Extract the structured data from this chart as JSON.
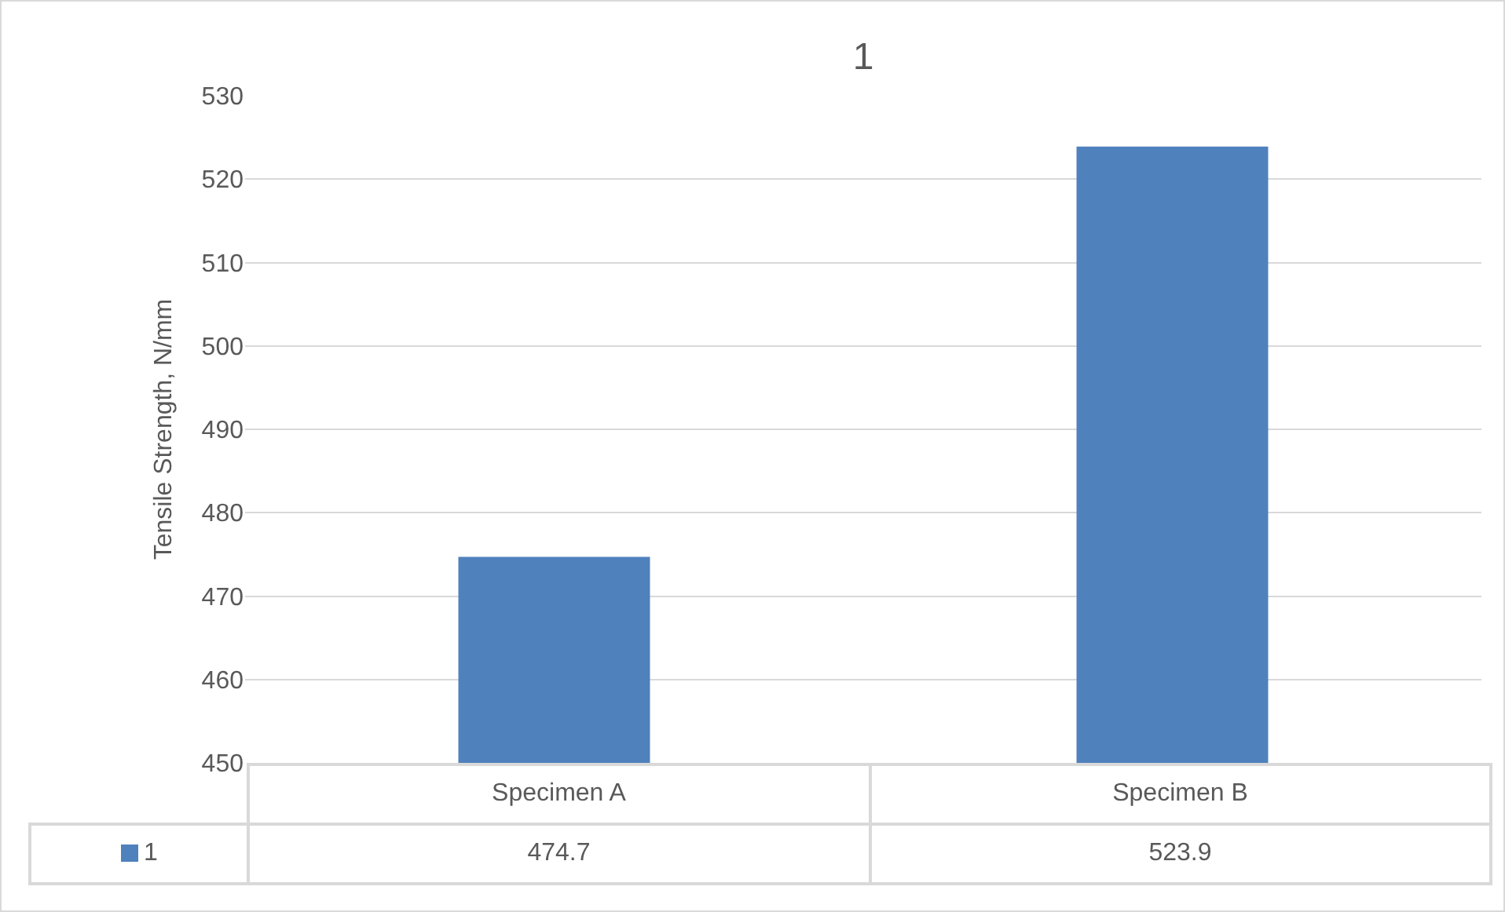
{
  "chart_data": {
    "type": "bar",
    "title": "1",
    "ylabel": "Tensile Strength, N/mm",
    "categories": [
      "Specimen A",
      "Specimen B"
    ],
    "series": [
      {
        "name": "1",
        "color": "#4f81bd",
        "values": [
          474.7,
          523.9
        ]
      }
    ],
    "ylim": [
      450,
      530
    ],
    "yticks": [
      450,
      460,
      470,
      480,
      490,
      500,
      510,
      520,
      530
    ],
    "grid": "y",
    "data_labels": true,
    "legend": "bottom"
  }
}
